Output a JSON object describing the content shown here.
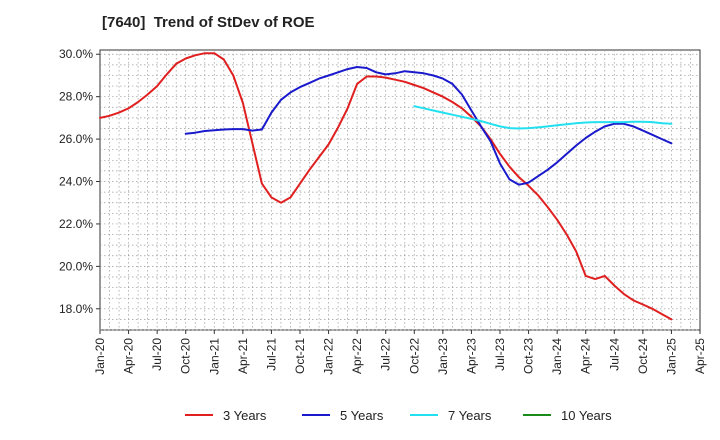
{
  "chart_data": {
    "type": "line",
    "title": "[7640]  Trend of StDev of ROE",
    "xlabel": "",
    "ylabel": "",
    "x_ticks": [
      "Jan-20",
      "Apr-20",
      "Jul-20",
      "Oct-20",
      "Jan-21",
      "Apr-21",
      "Jul-21",
      "Oct-21",
      "Jan-22",
      "Apr-22",
      "Jul-22",
      "Oct-22",
      "Jan-23",
      "Apr-23",
      "Jul-23",
      "Oct-23",
      "Jan-24",
      "Apr-24",
      "Jul-24",
      "Oct-24",
      "Jan-25",
      "Apr-25"
    ],
    "y_ticks": [
      "18.0%",
      "20.0%",
      "22.0%",
      "24.0%",
      "26.0%",
      "28.0%",
      "30.0%"
    ],
    "y_tick_values": [
      18,
      20,
      22,
      24,
      26,
      28,
      30
    ],
    "ylim": [
      17.0,
      30.2
    ],
    "grid": true,
    "legend_position": "bottom",
    "series": [
      {
        "name": "3 Years",
        "color": "#e02020",
        "points": [
          [
            "2020-01",
            27.0
          ],
          [
            "2020-02",
            27.1
          ],
          [
            "2020-03",
            27.25
          ],
          [
            "2020-04",
            27.45
          ],
          [
            "2020-05",
            27.75
          ],
          [
            "2020-06",
            28.1
          ],
          [
            "2020-07",
            28.5
          ],
          [
            "2020-08",
            29.05
          ],
          [
            "2020-09",
            29.55
          ],
          [
            "2020-10",
            29.8
          ],
          [
            "2020-11",
            29.95
          ],
          [
            "2020-12",
            30.05
          ],
          [
            "2021-01",
            30.05
          ],
          [
            "2021-02",
            29.75
          ],
          [
            "2021-03",
            29.0
          ],
          [
            "2021-04",
            27.7
          ],
          [
            "2021-05",
            25.8
          ],
          [
            "2021-06",
            23.9
          ],
          [
            "2021-07",
            23.25
          ],
          [
            "2021-08",
            23.0
          ],
          [
            "2021-09",
            23.25
          ],
          [
            "2021-10",
            23.9
          ],
          [
            "2021-11",
            24.55
          ],
          [
            "2021-12",
            25.15
          ],
          [
            "2022-01",
            25.75
          ],
          [
            "2022-02",
            26.55
          ],
          [
            "2022-03",
            27.45
          ],
          [
            "2022-04",
            28.6
          ],
          [
            "2022-05",
            28.95
          ],
          [
            "2022-06",
            28.95
          ],
          [
            "2022-07",
            28.9
          ],
          [
            "2022-08",
            28.8
          ],
          [
            "2022-09",
            28.7
          ],
          [
            "2022-10",
            28.55
          ],
          [
            "2022-11",
            28.4
          ],
          [
            "2022-12",
            28.2
          ],
          [
            "2023-01",
            28.0
          ],
          [
            "2023-02",
            27.75
          ],
          [
            "2023-03",
            27.45
          ],
          [
            "2023-04",
            27.05
          ],
          [
            "2023-05",
            26.6
          ],
          [
            "2023-06",
            26.0
          ],
          [
            "2023-07",
            25.3
          ],
          [
            "2023-08",
            24.7
          ],
          [
            "2023-09",
            24.2
          ],
          [
            "2023-10",
            23.8
          ],
          [
            "2023-11",
            23.35
          ],
          [
            "2023-12",
            22.8
          ],
          [
            "2024-01",
            22.2
          ],
          [
            "2024-02",
            21.5
          ],
          [
            "2024-03",
            20.7
          ],
          [
            "2024-04",
            19.55
          ],
          [
            "2024-05",
            19.4
          ],
          [
            "2024-06",
            19.55
          ],
          [
            "2024-07",
            19.1
          ],
          [
            "2024-08",
            18.7
          ],
          [
            "2024-09",
            18.4
          ],
          [
            "2024-10",
            18.2
          ],
          [
            "2024-11",
            18.0
          ],
          [
            "2024-12",
            17.75
          ],
          [
            "2025-01",
            17.5
          ]
        ]
      },
      {
        "name": "5 Years",
        "color": "#1a1acc",
        "points": [
          [
            "2020-10",
            26.25
          ],
          [
            "2020-11",
            26.3
          ],
          [
            "2020-12",
            26.38
          ],
          [
            "2021-01",
            26.42
          ],
          [
            "2021-02",
            26.45
          ],
          [
            "2021-03",
            26.47
          ],
          [
            "2021-04",
            26.47
          ],
          [
            "2021-05",
            26.4
          ],
          [
            "2021-06",
            26.45
          ],
          [
            "2021-07",
            27.25
          ],
          [
            "2021-08",
            27.85
          ],
          [
            "2021-09",
            28.2
          ],
          [
            "2021-10",
            28.45
          ],
          [
            "2021-11",
            28.65
          ],
          [
            "2021-12",
            28.85
          ],
          [
            "2022-01",
            29.0
          ],
          [
            "2022-02",
            29.15
          ],
          [
            "2022-03",
            29.3
          ],
          [
            "2022-04",
            29.4
          ],
          [
            "2022-05",
            29.35
          ],
          [
            "2022-06",
            29.15
          ],
          [
            "2022-07",
            29.05
          ],
          [
            "2022-08",
            29.1
          ],
          [
            "2022-09",
            29.2
          ],
          [
            "2022-10",
            29.15
          ],
          [
            "2022-11",
            29.1
          ],
          [
            "2022-12",
            29.0
          ],
          [
            "2023-01",
            28.85
          ],
          [
            "2023-02",
            28.6
          ],
          [
            "2023-03",
            28.1
          ],
          [
            "2023-04",
            27.35
          ],
          [
            "2023-05",
            26.6
          ],
          [
            "2023-06",
            25.9
          ],
          [
            "2023-07",
            24.85
          ],
          [
            "2023-08",
            24.1
          ],
          [
            "2023-09",
            23.85
          ],
          [
            "2023-10",
            23.95
          ],
          [
            "2023-11",
            24.25
          ],
          [
            "2023-12",
            24.55
          ],
          [
            "2024-01",
            24.9
          ],
          [
            "2024-02",
            25.3
          ],
          [
            "2024-03",
            25.7
          ],
          [
            "2024-04",
            26.05
          ],
          [
            "2024-05",
            26.35
          ],
          [
            "2024-06",
            26.6
          ],
          [
            "2024-07",
            26.72
          ],
          [
            "2024-08",
            26.72
          ],
          [
            "2024-09",
            26.6
          ],
          [
            "2024-10",
            26.4
          ],
          [
            "2024-11",
            26.2
          ],
          [
            "2024-12",
            26.0
          ],
          [
            "2025-01",
            25.8
          ]
        ]
      },
      {
        "name": "7 Years",
        "color": "#22e0f0",
        "points": [
          [
            "2022-10",
            27.55
          ],
          [
            "2022-11",
            27.45
          ],
          [
            "2022-12",
            27.35
          ],
          [
            "2023-01",
            27.25
          ],
          [
            "2023-02",
            27.15
          ],
          [
            "2023-03",
            27.05
          ],
          [
            "2023-04",
            26.95
          ],
          [
            "2023-05",
            26.85
          ],
          [
            "2023-06",
            26.72
          ],
          [
            "2023-07",
            26.6
          ],
          [
            "2023-08",
            26.52
          ],
          [
            "2023-09",
            26.5
          ],
          [
            "2023-10",
            26.52
          ],
          [
            "2023-11",
            26.55
          ],
          [
            "2023-12",
            26.6
          ],
          [
            "2024-01",
            26.65
          ],
          [
            "2024-02",
            26.7
          ],
          [
            "2024-03",
            26.75
          ],
          [
            "2024-04",
            26.78
          ],
          [
            "2024-05",
            26.8
          ],
          [
            "2024-06",
            26.8
          ],
          [
            "2024-07",
            26.8
          ],
          [
            "2024-08",
            26.8
          ],
          [
            "2024-09",
            26.82
          ],
          [
            "2024-10",
            26.82
          ],
          [
            "2024-11",
            26.8
          ],
          [
            "2024-12",
            26.75
          ],
          [
            "2025-01",
            26.72
          ]
        ]
      },
      {
        "name": "10 Years",
        "color": "#1a8a1a",
        "points": []
      }
    ]
  }
}
